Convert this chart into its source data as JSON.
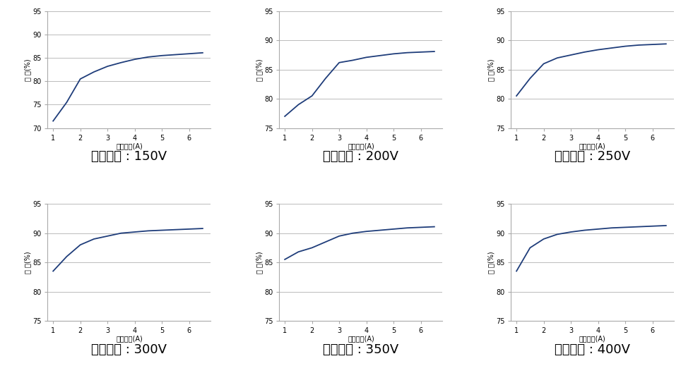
{
  "subplots": [
    {
      "label": "출력전압 : 150V",
      "x": [
        1,
        1.5,
        2,
        2.5,
        3,
        3.5,
        4,
        4.5,
        5,
        5.5,
        6,
        6.5
      ],
      "y": [
        71.5,
        75.5,
        80.5,
        82.0,
        83.2,
        84.0,
        84.7,
        85.2,
        85.5,
        85.7,
        85.9,
        86.1
      ],
      "ylim": [
        70,
        95
      ],
      "yticks": [
        70,
        75,
        80,
        85,
        90,
        95
      ]
    },
    {
      "label": "출력전압 : 200V",
      "x": [
        1,
        1.5,
        2,
        2.5,
        3,
        3.5,
        4,
        4.5,
        5,
        5.5,
        6,
        6.5
      ],
      "y": [
        77.0,
        79.0,
        80.5,
        83.5,
        86.2,
        86.6,
        87.1,
        87.4,
        87.7,
        87.9,
        88.0,
        88.1
      ],
      "ylim": [
        75,
        95
      ],
      "yticks": [
        75,
        80,
        85,
        90,
        95
      ]
    },
    {
      "label": "출력전압 : 250V",
      "x": [
        1,
        1.5,
        2,
        2.5,
        3,
        3.5,
        4,
        4.5,
        5,
        5.5,
        6,
        6.5
      ],
      "y": [
        80.5,
        83.5,
        86.0,
        87.0,
        87.5,
        88.0,
        88.4,
        88.7,
        89.0,
        89.2,
        89.3,
        89.4
      ],
      "ylim": [
        75,
        95
      ],
      "yticks": [
        75,
        80,
        85,
        90,
        95
      ]
    },
    {
      "label": "출력전압 : 300V",
      "x": [
        1,
        1.5,
        2,
        2.5,
        3,
        3.5,
        4,
        4.5,
        5,
        5.5,
        6,
        6.5
      ],
      "y": [
        83.5,
        86.0,
        88.0,
        89.0,
        89.5,
        90.0,
        90.2,
        90.4,
        90.5,
        90.6,
        90.7,
        90.8
      ],
      "ylim": [
        75,
        95
      ],
      "yticks": [
        75,
        80,
        85,
        90,
        95
      ]
    },
    {
      "label": "출력전압 : 350V",
      "x": [
        1,
        1.5,
        2,
        2.5,
        3,
        3.5,
        4,
        4.5,
        5,
        5.5,
        6,
        6.5
      ],
      "y": [
        85.5,
        86.8,
        87.5,
        88.5,
        89.5,
        90.0,
        90.3,
        90.5,
        90.7,
        90.9,
        91.0,
        91.1
      ],
      "ylim": [
        75,
        95
      ],
      "yticks": [
        75,
        80,
        85,
        90,
        95
      ]
    },
    {
      "label": "출력전압 : 400V",
      "x": [
        1,
        1.5,
        2,
        2.5,
        3,
        3.5,
        4,
        4.5,
        5,
        5.5,
        6,
        6.5
      ],
      "y": [
        83.5,
        87.5,
        89.0,
        89.8,
        90.2,
        90.5,
        90.7,
        90.9,
        91.0,
        91.1,
        91.2,
        91.3
      ],
      "ylim": [
        75,
        95
      ],
      "yticks": [
        75,
        80,
        85,
        90,
        95
      ]
    }
  ],
  "line_color": "#1f3d7a",
  "xlabel": "출력전류(A)",
  "ylabel": "효 율(%)",
  "xticks": [
    1,
    2,
    3,
    4,
    5,
    6
  ],
  "xlim": [
    0.8,
    6.8
  ],
  "label_fontsize": 7,
  "tick_fontsize": 7,
  "subtitle_fontsize": 13,
  "bg_color": "#ffffff",
  "grid_color": "#bbbbbb"
}
